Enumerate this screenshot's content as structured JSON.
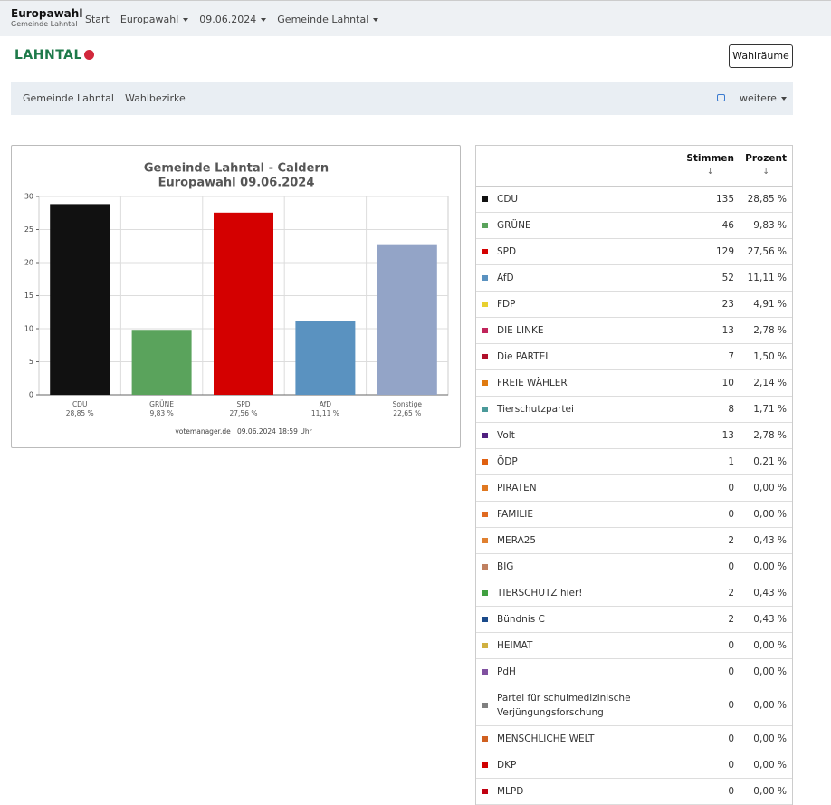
{
  "header": {
    "title": "Europawahl",
    "subtitle": "Gemeinde Lahntal",
    "nav": [
      "Start",
      "Europawahl",
      "09.06.2024",
      "Gemeinde Lahntal"
    ]
  },
  "logo": "LAHNTAL",
  "button": "Wahlräume",
  "breadcrumb": {
    "items": [
      "Gemeinde Lahntal",
      "Wahlbezirke"
    ],
    "more": "weitere"
  },
  "chart_data": {
    "type": "bar",
    "title": [
      "Gemeinde Lahntal - Caldern",
      "Europawahl 09.06.2024"
    ],
    "categories": [
      "CDU",
      "GRÜNE",
      "SPD",
      "AfD",
      "Sonstige"
    ],
    "values": [
      28.85,
      9.83,
      27.56,
      11.11,
      22.65
    ],
    "value_labels": [
      "28,85 %",
      "9,83 %",
      "27,56 %",
      "11,11 %",
      "22,65 %"
    ],
    "colors": [
      "#111111",
      "#5aa35c",
      "#d40000",
      "#5a92c0",
      "#93a4c7"
    ],
    "ylim": [
      0,
      30
    ],
    "yticks": [
      0,
      5,
      10,
      15,
      20,
      25,
      30
    ],
    "grid": true,
    "footer": "votemanager.de | 09.06.2024 18:59 Uhr"
  },
  "table": {
    "columns": [
      "Stimmen",
      "Prozent"
    ],
    "rows": [
      {
        "name": "CDU",
        "color": "#111111",
        "votes": 135,
        "percent": "28,85 %"
      },
      {
        "name": "GRÜNE",
        "color": "#5aa35c",
        "votes": 46,
        "percent": "9,83 %"
      },
      {
        "name": "SPD",
        "color": "#d40000",
        "votes": 129,
        "percent": "27,56 %"
      },
      {
        "name": "AfD",
        "color": "#5a92c0",
        "votes": 52,
        "percent": "11,11 %"
      },
      {
        "name": "FDP",
        "color": "#e8d030",
        "votes": 23,
        "percent": "4,91 %"
      },
      {
        "name": "DIE LINKE",
        "color": "#c0245a",
        "votes": 13,
        "percent": "2,78 %"
      },
      {
        "name": "Die PARTEI",
        "color": "#b0102a",
        "votes": 7,
        "percent": "1,50 %"
      },
      {
        "name": "FREIE WÄHLER",
        "color": "#e07a10",
        "votes": 10,
        "percent": "2,14 %"
      },
      {
        "name": "Tierschutzpartei",
        "color": "#4a9a9a",
        "votes": 8,
        "percent": "1,71 %"
      },
      {
        "name": "Volt",
        "color": "#502080",
        "votes": 13,
        "percent": "2,78 %"
      },
      {
        "name": "ÖDP",
        "color": "#e06010",
        "votes": 1,
        "percent": "0,21 %"
      },
      {
        "name": "PIRATEN",
        "color": "#e07820",
        "votes": 0,
        "percent": "0,00 %"
      },
      {
        "name": "FAMILIE",
        "color": "#e06a20",
        "votes": 0,
        "percent": "0,00 %"
      },
      {
        "name": "MERA25",
        "color": "#e08030",
        "votes": 2,
        "percent": "0,43 %"
      },
      {
        "name": "BIG",
        "color": "#c08060",
        "votes": 0,
        "percent": "0,00 %"
      },
      {
        "name": "TIERSCHUTZ hier!",
        "color": "#40a040",
        "votes": 2,
        "percent": "0,43 %"
      },
      {
        "name": "Bündnis C",
        "color": "#1a4a8a",
        "votes": 2,
        "percent": "0,43 %"
      },
      {
        "name": "HEIMAT",
        "color": "#d0b040",
        "votes": 0,
        "percent": "0,00 %"
      },
      {
        "name": "PdH",
        "color": "#8050a0",
        "votes": 0,
        "percent": "0,00 %"
      },
      {
        "name": "Partei für schulmedizinische Verjüngungsforschung",
        "color": "#808080",
        "votes": 0,
        "percent": "0,00 %"
      },
      {
        "name": "MENSCHLICHE WELT",
        "color": "#d06020",
        "votes": 0,
        "percent": "0,00 %"
      },
      {
        "name": "DKP",
        "color": "#d00000",
        "votes": 0,
        "percent": "0,00 %"
      },
      {
        "name": "MLPD",
        "color": "#c00010",
        "votes": 0,
        "percent": "0,00 %"
      }
    ]
  }
}
